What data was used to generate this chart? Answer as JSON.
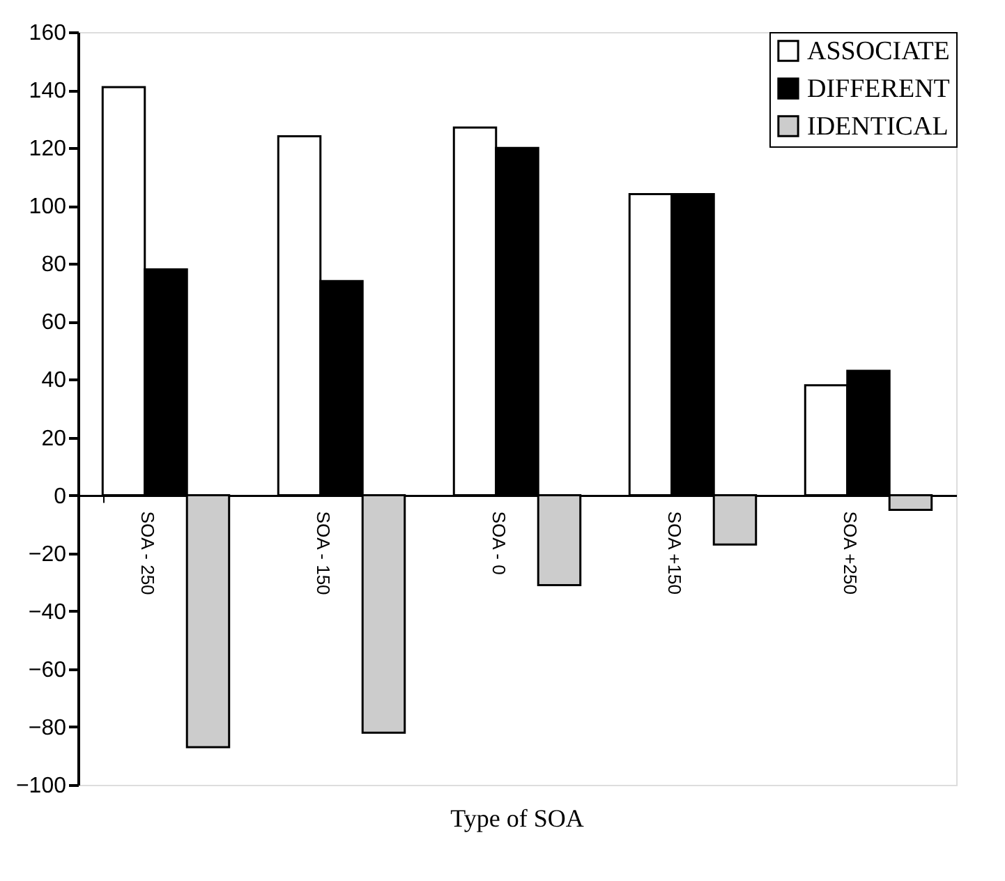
{
  "chart_data": {
    "type": "bar",
    "xlabel": "Type of SOA",
    "categories": [
      "SOA - 250",
      "SOA - 150",
      "SOA - 0",
      "SOA +150",
      "SOA +250"
    ],
    "series": [
      {
        "name": "ASSOCIATE",
        "color": "#ffffff",
        "values": [
          141,
          124,
          127,
          104,
          38
        ]
      },
      {
        "name": "DIFFERENT",
        "color": "#000000",
        "values": [
          78,
          74,
          120,
          104,
          43
        ]
      },
      {
        "name": "IDENTICAL",
        "color": "#cccccc",
        "values": [
          -87,
          -82,
          -31,
          -17,
          -5
        ]
      }
    ],
    "ylim": [
      -100,
      160
    ],
    "yticks": [
      -100,
      -80,
      -60,
      -40,
      -20,
      0,
      20,
      40,
      60,
      80,
      100,
      120,
      140,
      160
    ],
    "grid": false,
    "legend": "top right"
  }
}
